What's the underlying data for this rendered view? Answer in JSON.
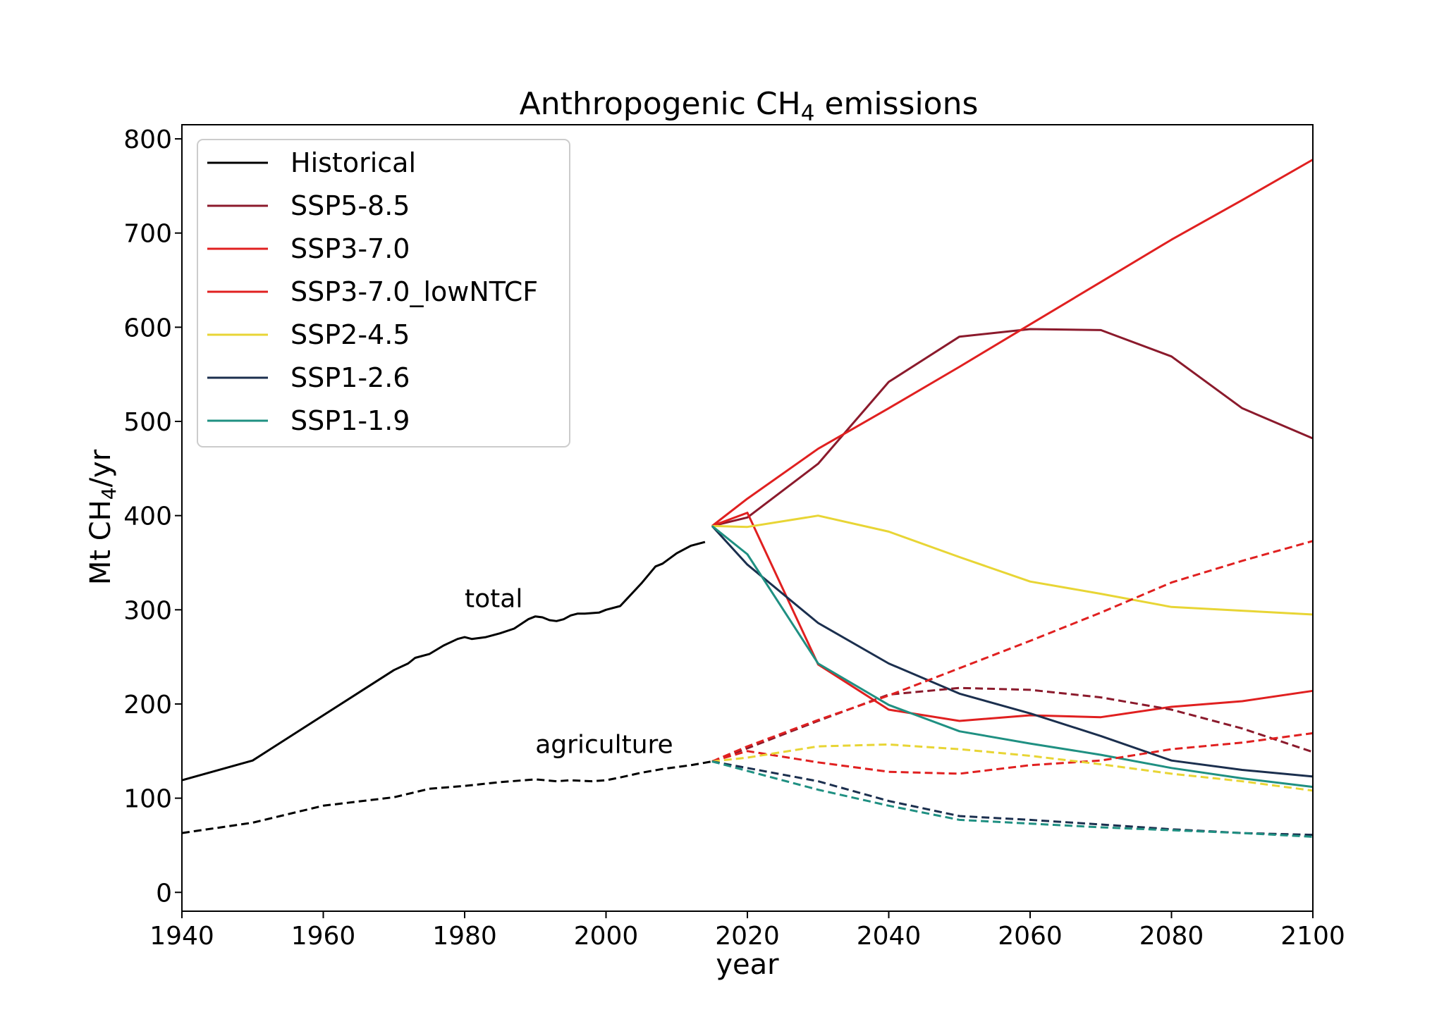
{
  "chart_data": {
    "type": "line",
    "title_main": "Anthropogenic CH",
    "title_sub": "4",
    "title_rest": " emissions",
    "xlabel": "year",
    "ylabel_main": "Mt CH",
    "ylabel_sub": "4",
    "ylabel_rest": "/yr",
    "xlim": [
      1940,
      2100
    ],
    "ylim": [
      -20,
      815
    ],
    "xticks": [
      1940,
      1960,
      1980,
      2000,
      2020,
      2040,
      2060,
      2080,
      2100
    ],
    "yticks": [
      0,
      100,
      200,
      300,
      400,
      500,
      600,
      700,
      800
    ],
    "legend_position": "top-left",
    "annotations": [
      {
        "text": "total",
        "x": 1980,
        "y": 303
      },
      {
        "text": "agriculture",
        "x": 1990,
        "y": 148
      }
    ],
    "series": [
      {
        "name": "Historical",
        "color": "#000000",
        "style": "solid",
        "legend": true,
        "x": [
          1940,
          1950,
          1960,
          1970,
          1972,
          1973,
          1975,
          1977,
          1979,
          1980,
          1981,
          1983,
          1985,
          1987,
          1989,
          1990,
          1991,
          1992,
          1993,
          1994,
          1995,
          1996,
          1997,
          1999,
          2000,
          2002,
          2003,
          2005,
          2007,
          2008,
          2010,
          2012,
          2014
        ],
        "y": [
          119,
          140,
          188,
          236,
          243,
          249,
          253,
          262,
          269,
          271,
          269,
          271,
          275,
          280,
          290,
          293,
          292,
          289,
          288,
          290,
          294,
          296,
          296,
          297,
          300,
          304,
          312,
          328,
          346,
          349,
          360,
          368,
          372
        ]
      },
      {
        "name": "Historical agriculture",
        "color": "#000000",
        "style": "dashed",
        "legend": false,
        "x": [
          1940,
          1950,
          1960,
          1970,
          1975,
          1980,
          1985,
          1990,
          1993,
          1995,
          1998,
          2000,
          2002,
          2005,
          2008,
          2010,
          2012,
          2015
        ],
        "y": [
          63,
          74,
          92,
          101,
          110,
          113,
          117,
          120,
          118,
          119,
          118,
          119,
          122,
          127,
          131,
          133,
          135,
          139
        ]
      },
      {
        "name": "SSP5-8.5",
        "color": "#8b1a2c",
        "style": "solid",
        "legend": true,
        "x": [
          2015,
          2020,
          2030,
          2040,
          2050,
          2060,
          2070,
          2080,
          2090,
          2100
        ],
        "y": [
          389,
          398,
          455,
          542,
          590,
          598,
          597,
          569,
          514,
          482
        ]
      },
      {
        "name": "SSP3-7.0",
        "color": "#e02020",
        "style": "solid",
        "legend": true,
        "x": [
          2015,
          2020,
          2030,
          2040,
          2050,
          2060,
          2070,
          2080,
          2090,
          2100
        ],
        "y": [
          389,
          418,
          471,
          514,
          558,
          603,
          648,
          693,
          735,
          778
        ]
      },
      {
        "name": "SSP3-7.0_lowNTCF",
        "color": "#e02020",
        "style": "solid",
        "legend": true,
        "x": [
          2015,
          2020,
          2030,
          2040,
          2050,
          2060,
          2070,
          2080,
          2090,
          2100
        ],
        "y": [
          389,
          403,
          242,
          194,
          182,
          188,
          186,
          197,
          203,
          214
        ]
      },
      {
        "name": "SSP2-4.5",
        "color": "#e8d535",
        "style": "solid",
        "legend": true,
        "x": [
          2015,
          2020,
          2030,
          2040,
          2050,
          2060,
          2070,
          2080,
          2090,
          2100
        ],
        "y": [
          389,
          388,
          400,
          383,
          356,
          330,
          317,
          303,
          299,
          295
        ]
      },
      {
        "name": "SSP1-2.6",
        "color": "#1b2f4e",
        "style": "solid",
        "legend": true,
        "x": [
          2015,
          2020,
          2030,
          2040,
          2050,
          2060,
          2070,
          2080,
          2090,
          2100
        ],
        "y": [
          389,
          348,
          286,
          243,
          211,
          190,
          166,
          140,
          130,
          123
        ]
      },
      {
        "name": "SSP1-1.9",
        "color": "#1f9082",
        "style": "solid",
        "legend": true,
        "x": [
          2015,
          2020,
          2030,
          2040,
          2050,
          2060,
          2070,
          2080,
          2090,
          2100
        ],
        "y": [
          389,
          359,
          243,
          199,
          171,
          158,
          146,
          132,
          121,
          112
        ]
      },
      {
        "name": "SSP5-8.5 agriculture",
        "color": "#8b1a2c",
        "style": "dashed",
        "legend": false,
        "x": [
          2015,
          2020,
          2030,
          2040,
          2050,
          2060,
          2070,
          2080,
          2090,
          2100
        ],
        "y": [
          139,
          153,
          182,
          210,
          217,
          215,
          207,
          194,
          174,
          149
        ]
      },
      {
        "name": "SSP3-7.0 agriculture",
        "color": "#e02020",
        "style": "dashed",
        "legend": false,
        "x": [
          2015,
          2020,
          2030,
          2040,
          2050,
          2060,
          2070,
          2080,
          2090,
          2100
        ],
        "y": [
          139,
          155,
          183,
          209,
          238,
          267,
          297,
          329,
          352,
          373
        ]
      },
      {
        "name": "SSP3-7.0_lowNTCF agriculture",
        "color": "#e02020",
        "style": "dashed",
        "legend": false,
        "x": [
          2015,
          2020,
          2030,
          2040,
          2050,
          2060,
          2070,
          2080,
          2090,
          2100
        ],
        "y": [
          139,
          150,
          138,
          128,
          126,
          135,
          140,
          152,
          159,
          169
        ]
      },
      {
        "name": "SSP2-4.5 agriculture",
        "color": "#e8d535",
        "style": "dashed",
        "legend": false,
        "x": [
          2015,
          2020,
          2030,
          2040,
          2050,
          2060,
          2070,
          2080,
          2090,
          2100
        ],
        "y": [
          139,
          143,
          155,
          157,
          152,
          145,
          136,
          126,
          118,
          108
        ]
      },
      {
        "name": "SSP1-2.6 agriculture",
        "color": "#1b2f4e",
        "style": "dashed",
        "legend": false,
        "x": [
          2015,
          2020,
          2030,
          2040,
          2050,
          2060,
          2070,
          2080,
          2090,
          2100
        ],
        "y": [
          139,
          132,
          118,
          97,
          81,
          77,
          72,
          67,
          63,
          61
        ]
      },
      {
        "name": "SSP1-1.9 agriculture",
        "color": "#1f9082",
        "style": "dashed",
        "legend": false,
        "x": [
          2015,
          2020,
          2030,
          2040,
          2050,
          2060,
          2070,
          2080,
          2090,
          2100
        ],
        "y": [
          139,
          129,
          109,
          92,
          77,
          73,
          69,
          66,
          63,
          59
        ]
      }
    ]
  }
}
